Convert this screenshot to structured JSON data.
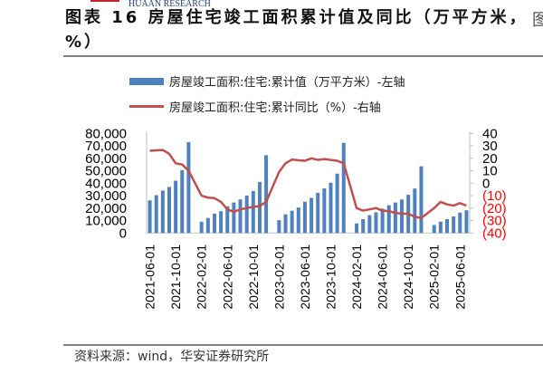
{
  "header": {
    "logo_text": "HUAAN RESEARCH",
    "title": "图表 16 房屋住宅竣工面积累计值及同比（万平方米，%）",
    "clipped_edge_text": "图"
  },
  "source": "资料来源：wind，华安证券研究所",
  "chart_data": {
    "type": "bar+line",
    "title": "图表 16 房屋住宅竣工面积累计值及同比（万平方米，%）",
    "legend_position": "top",
    "grid": false,
    "x": [
      "2021-06-01",
      "2021-07-01",
      "2021-08-01",
      "2021-09-01",
      "2021-10-01",
      "2021-11-01",
      "2021-12-01",
      "2022-01-01",
      "2022-02-01",
      "2022-03-01",
      "2022-04-01",
      "2022-05-01",
      "2022-06-01",
      "2022-07-01",
      "2022-08-01",
      "2022-09-01",
      "2022-10-01",
      "2022-11-01",
      "2022-12-01",
      "2023-01-01",
      "2023-02-01",
      "2023-03-01",
      "2023-04-01",
      "2023-05-01",
      "2023-06-01",
      "2023-07-01",
      "2023-08-01",
      "2023-09-01",
      "2023-10-01",
      "2023-11-01",
      "2023-12-01",
      "2024-01-01",
      "2024-02-01",
      "2024-03-01",
      "2024-04-01",
      "2024-05-01",
      "2024-06-01",
      "2024-07-01",
      "2024-08-01",
      "2024-09-01",
      "2024-10-01",
      "2024-11-01",
      "2024-12-01",
      "2025-01-01",
      "2025-02-01",
      "2025-03-01",
      "2025-04-01",
      "2025-05-01",
      "2025-06-01",
      "2025-07-01"
    ],
    "x_tick_labels": [
      "2021-06-01",
      "2021-10-01",
      "2022-02-01",
      "2022-06-01",
      "2022-10-01",
      "2023-02-01",
      "2023-06-01",
      "2023-10-01",
      "2024-02-01",
      "2024-06-01",
      "2024-10-01",
      "2025-02-01",
      "2025-06-01"
    ],
    "left_axis": {
      "ylim": [
        0,
        80000
      ],
      "ticks": [
        "0",
        "10,000",
        "20,000",
        "30,000",
        "40,000",
        "50,000",
        "60,000",
        "70,000",
        "80,000"
      ]
    },
    "right_axis": {
      "ylim": [
        -40,
        40
      ],
      "ticks": [
        "(40)",
        "(30)",
        "(20)",
        "(10)",
        "0",
        "10",
        "20",
        "30",
        "40"
      ],
      "negative_color": "#ff0000"
    },
    "series": [
      {
        "name": "房屋竣工面积:住宅:累计值（万平方米）-左轴",
        "type": "bar",
        "axis": "left",
        "color": "#4f81bd",
        "values": [
          26200,
          30400,
          34100,
          37000,
          42000,
          50500,
          73000,
          null,
          9100,
          12100,
          15600,
          17500,
          21400,
          24500,
          27000,
          30100,
          33700,
          41000,
          62500,
          null,
          10300,
          15000,
          17900,
          20500,
          25100,
          28200,
          32300,
          35800,
          40400,
          47700,
          72400,
          null,
          7700,
          11100,
          14300,
          16600,
          19600,
          22300,
          24500,
          26900,
          30700,
          35700,
          53600,
          null,
          6400,
          9100,
          11100,
          13300,
          16400,
          18300
        ]
      },
      {
        "name": "房屋竣工面积:住宅:累计同比（%）-右轴",
        "type": "line",
        "axis": "right",
        "color": "#c0504d",
        "values": [
          26,
          26.4,
          26.7,
          23.5,
          16,
          15,
          10,
          null,
          -10,
          -11.6,
          -12,
          -15,
          -21,
          -23,
          -21,
          -20,
          -19,
          -18.4,
          -15,
          null,
          9,
          16,
          19,
          18.4,
          18,
          20,
          18.7,
          19.4,
          18.7,
          18,
          16,
          null,
          -20,
          -22,
          -21,
          -20,
          -22,
          -22.5,
          -23.8,
          -24.5,
          -24.5,
          -27,
          -28,
          null,
          -20,
          -15,
          -17,
          -18,
          -16,
          -18
        ]
      }
    ]
  }
}
